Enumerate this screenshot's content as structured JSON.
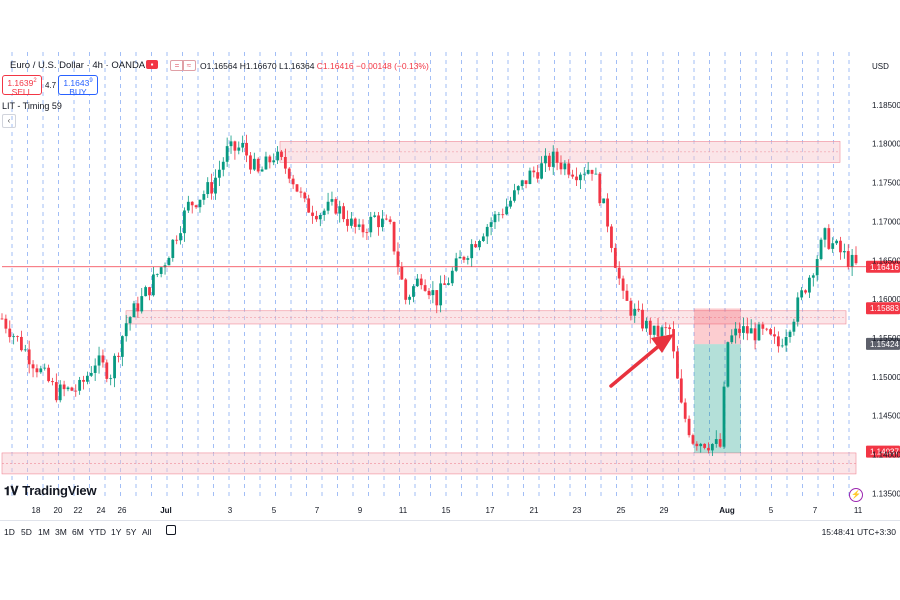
{
  "header": {
    "symbol": "Euro / U.S. Dollar · 4h · OANDA",
    "ohlc": {
      "o": "O1.16564",
      "h": "H1.16670",
      "l": "L1.16364",
      "c": "C1.16416",
      "change": "−0.00148 (−0.13%)"
    },
    "sell_price": "1.1639",
    "sell_price_sup": "2",
    "sell_label": "SELL",
    "buy_price": "1.1643",
    "buy_price_sup": "9",
    "buy_label": "BUY",
    "spread": "4.7",
    "indicator": "LIT - Timing 59",
    "currency": "USD"
  },
  "logo": "TradingView",
  "bottom": {
    "ranges": [
      "1D",
      "5D",
      "1M",
      "3M",
      "6M",
      "YTD",
      "1Y",
      "5Y",
      "All"
    ],
    "clock": "15:48:41 UTC+3:30"
  },
  "colors": {
    "up": "#089981",
    "down": "#f23645",
    "zone": "#f7c6cd",
    "grid_dash": "#5b8def",
    "arrow": "#e8323e"
  },
  "chart_data": {
    "type": "candlestick",
    "symbol": "EURUSD",
    "timeframe": "4h",
    "y_axis": {
      "ticks": [
        1.185,
        1.18,
        1.175,
        1.17,
        1.165,
        1.16,
        1.155,
        1.15,
        1.145,
        1.14,
        1.135
      ],
      "tick_labels": [
        "1.18500",
        "1.18000",
        "1.17500",
        "1.17000",
        "1.16500",
        "1.16000",
        "1.15500",
        "1.15000",
        "1.14500",
        "1.14000",
        "1.13500"
      ],
      "range": [
        1.1335,
        1.1882
      ]
    },
    "x_axis": {
      "tick_labels": [
        "18",
        "20",
        "22",
        "24",
        "26",
        "Jul",
        "3",
        "5",
        "7",
        "9",
        "11",
        "15",
        "17",
        "21",
        "23",
        "25",
        "29",
        "Aug",
        "5",
        "7",
        "11"
      ]
    },
    "price_labels": [
      {
        "value": 1.16416,
        "text": "1.16416",
        "kind": "current"
      },
      {
        "value": 1.15883,
        "text": "1.15883",
        "kind": "level"
      },
      {
        "value": 1.15424,
        "text": "1.15424",
        "kind": "gray"
      },
      {
        "value": 1.14037,
        "text": "1.14037",
        "kind": "level"
      }
    ],
    "zones": [
      {
        "from": 1.1776,
        "to": 1.1803
      },
      {
        "from": 1.1568,
        "to": 1.1585
      },
      {
        "from": 1.1375,
        "to": 1.1402
      }
    ],
    "position": {
      "entry": 1.1542,
      "stop": 1.1588,
      "target": 1.1402
    },
    "anchors": [
      [
        0,
        1.1575
      ],
      [
        8,
        1.152
      ],
      [
        14,
        1.148
      ],
      [
        20,
        1.1485
      ],
      [
        24,
        1.152
      ],
      [
        28,
        1.1505
      ],
      [
        32,
        1.157
      ],
      [
        38,
        1.1615
      ],
      [
        42,
        1.165
      ],
      [
        48,
        1.172
      ],
      [
        54,
        1.1745
      ],
      [
        58,
        1.179
      ],
      [
        62,
        1.1795
      ],
      [
        66,
        1.176
      ],
      [
        70,
        1.1785
      ],
      [
        74,
        1.1765
      ],
      [
        78,
        1.172
      ],
      [
        82,
        1.1712
      ],
      [
        86,
        1.172
      ],
      [
        92,
        1.1685
      ],
      [
        96,
        1.1705
      ],
      [
        100,
        1.169
      ],
      [
        104,
        1.16
      ],
      [
        108,
        1.163
      ],
      [
        112,
        1.16
      ],
      [
        118,
        1.165
      ],
      [
        124,
        1.169
      ],
      [
        130,
        1.172
      ],
      [
        136,
        1.176
      ],
      [
        142,
        1.178
      ],
      [
        148,
        1.1765
      ],
      [
        152,
        1.177
      ],
      [
        156,
        1.17
      ],
      [
        160,
        1.16
      ],
      [
        164,
        1.1575
      ],
      [
        168,
        1.1555
      ],
      [
        172,
        1.156
      ],
      [
        175,
        1.146
      ],
      [
        178,
        1.142
      ],
      [
        182,
        1.1415
      ],
      [
        185,
        1.141
      ],
      [
        187,
        1.1545
      ],
      [
        190,
        1.156
      ],
      [
        196,
        1.1555
      ],
      [
        200,
        1.154
      ],
      [
        204,
        1.158
      ],
      [
        208,
        1.163
      ],
      [
        212,
        1.168
      ],
      [
        216,
        1.166
      ],
      [
        220,
        1.1642
      ]
    ]
  }
}
